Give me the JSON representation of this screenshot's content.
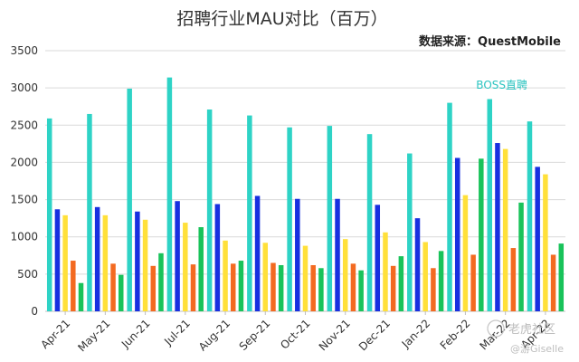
{
  "chart_data": {
    "type": "bar",
    "title": "招聘行业MAU对比（百万）",
    "source": "数据来源：QuestMobile",
    "categories": [
      "Apr-21",
      "May-21",
      "Jun-21",
      "Jul-21",
      "Aug-21",
      "Sep-21",
      "Oct-21",
      "Nov-21",
      "Dec-21",
      "Jan-22",
      "Feb-22",
      "Mar-22",
      "Apr-22"
    ],
    "ylim": [
      0,
      3500
    ],
    "yticks": [
      0,
      500,
      1000,
      1500,
      2000,
      2500,
      3000,
      3500
    ],
    "grid": true,
    "series": [
      {
        "name": "BOSS直聘",
        "color": "#2ed3c6",
        "values": [
          2590,
          2650,
          2990,
          3140,
          2710,
          2630,
          2470,
          2490,
          2380,
          2120,
          2800,
          2850,
          2550
        ]
      },
      {
        "color": "#1730e0",
        "values": [
          1370,
          1400,
          1340,
          1480,
          1440,
          1550,
          1510,
          1510,
          1430,
          1250,
          2060,
          2260,
          1940
        ]
      },
      {
        "color": "#ffe03a",
        "values": [
          1290,
          1290,
          1230,
          1190,
          950,
          920,
          880,
          970,
          1060,
          930,
          1560,
          2180,
          1840
        ]
      },
      {
        "color": "#f36a21",
        "values": [
          680,
          640,
          610,
          630,
          640,
          650,
          620,
          640,
          610,
          580,
          760,
          850,
          760
        ]
      },
      {
        "color": "#19c35a",
        "values": [
          380,
          490,
          780,
          1130,
          680,
          620,
          580,
          550,
          740,
          810,
          2050,
          1460,
          910
        ]
      }
    ],
    "annotations": [
      {
        "text": "BOSS直聘",
        "near_category": "Mar-22"
      }
    ]
  },
  "watermark": {
    "text": "老虎社区",
    "sub": "@游Giselle"
  }
}
